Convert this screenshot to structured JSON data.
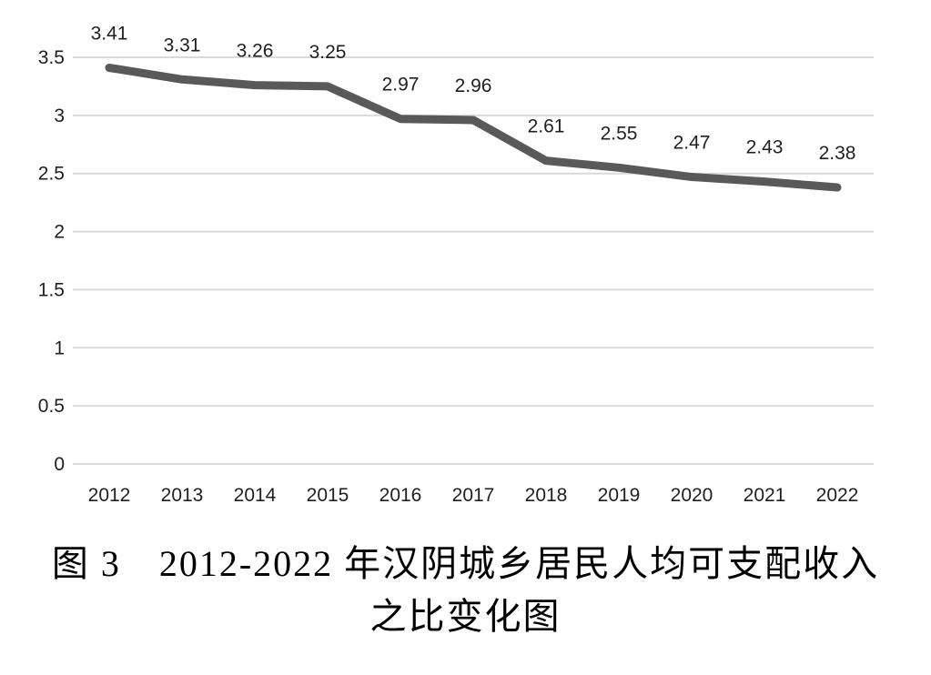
{
  "chart_data": {
    "type": "line",
    "title": "",
    "categories": [
      "2012",
      "2013",
      "2014",
      "2015",
      "2016",
      "2017",
      "2018",
      "2019",
      "2020",
      "2021",
      "2022"
    ],
    "values": [
      3.41,
      3.31,
      3.26,
      3.25,
      2.97,
      2.96,
      2.61,
      2.55,
      2.47,
      2.43,
      2.38
    ],
    "data_labels": [
      "3.41",
      "3.31",
      "3.26",
      "3.25",
      "2.97",
      "2.96",
      "2.61",
      "2.55",
      "2.47",
      "2.43",
      "2.38"
    ],
    "xlabel": "",
    "ylabel": "",
    "ylim": [
      0,
      3.5
    ],
    "yticks": [
      "0",
      "0.5",
      "1",
      "1.5",
      "2",
      "2.5",
      "3",
      "3.5"
    ],
    "grid": true,
    "legend": "none",
    "line_color": "#595959",
    "gridline_color": "#d9d9d9",
    "text_color": "#1f1f1f"
  },
  "caption": {
    "line1": "图 3　2012-2022 年汉阴城乡居民人均可支配收入",
    "line2": "之比变化图"
  }
}
